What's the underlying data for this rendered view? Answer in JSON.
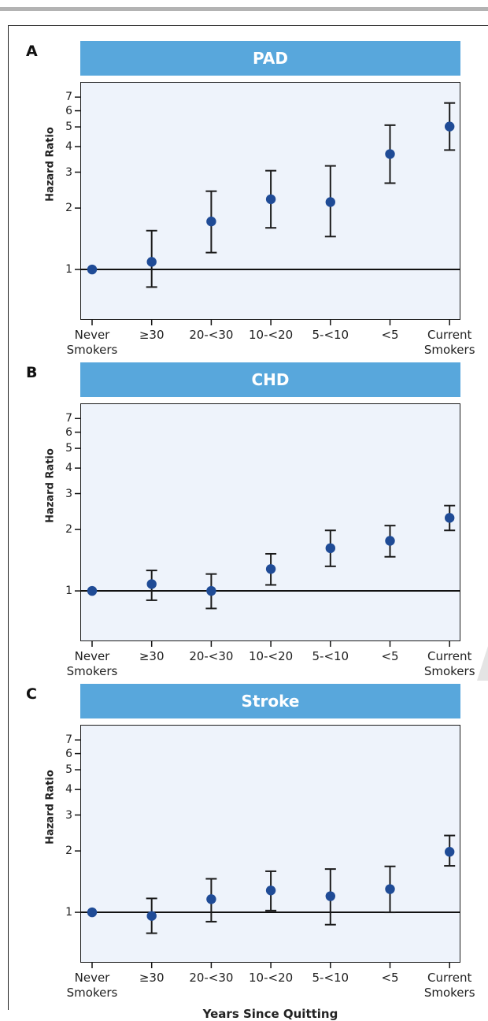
{
  "chart_data": [
    {
      "type": "scatter",
      "panel_label": "A",
      "title": "PAD",
      "xlabel": "Years Since Quitting",
      "ylabel": "Hazard Ratio",
      "y_scale": "log",
      "ylim": [
        0.78,
        7.6
      ],
      "y_ticks": [
        1,
        2,
        3,
        4,
        5,
        6,
        7
      ],
      "reference_line": 1,
      "categories": [
        "Never\nSmokers",
        "≥30",
        "20-<30",
        "10-<20",
        "5-<10",
        "<5",
        "Current\nSmokers"
      ],
      "values": [
        1.0,
        1.09,
        1.72,
        2.21,
        2.14,
        3.68,
        5.02
      ],
      "ci_low": [
        null,
        0.82,
        1.21,
        1.6,
        1.45,
        2.65,
        3.85
      ],
      "ci_high": [
        null,
        1.55,
        2.42,
        3.05,
        3.22,
        5.1,
        6.55
      ]
    },
    {
      "type": "scatter",
      "panel_label": "B",
      "title": "CHD",
      "xlabel": "Years Since Quitting",
      "ylabel": "Hazard Ratio",
      "y_scale": "log",
      "ylim": [
        0.78,
        7.6
      ],
      "y_ticks": [
        1,
        2,
        3,
        4,
        5,
        6,
        7
      ],
      "reference_line": 1,
      "categories": [
        "Never\nSmokers",
        "≥30",
        "20-<30",
        "10-<20",
        "5-<10",
        "<5",
        "Current\nSmokers"
      ],
      "values": [
        1.0,
        1.08,
        1.0,
        1.28,
        1.62,
        1.76,
        2.28
      ],
      "ci_low": [
        null,
        0.9,
        0.82,
        1.07,
        1.32,
        1.47,
        1.98
      ],
      "ci_high": [
        null,
        1.26,
        1.21,
        1.52,
        1.98,
        2.09,
        2.62
      ]
    },
    {
      "type": "scatter",
      "panel_label": "C",
      "title": "Stroke",
      "xlabel": "Years Since Quitting",
      "ylabel": "Hazard Ratio",
      "y_scale": "log",
      "ylim": [
        0.78,
        7.6
      ],
      "y_ticks": [
        1,
        2,
        3,
        4,
        5,
        6,
        7
      ],
      "reference_line": 1,
      "categories": [
        "Never\nSmokers",
        "≥30",
        "20-<30",
        "10-<20",
        "5-<10",
        "<5",
        "Current\nSmokers"
      ],
      "values": [
        1.0,
        0.96,
        1.16,
        1.28,
        1.2,
        1.3,
        1.98
      ],
      "ci_low": [
        null,
        0.79,
        0.9,
        1.02,
        0.87,
        1.0,
        1.69
      ],
      "ci_high": [
        null,
        1.17,
        1.46,
        1.59,
        1.63,
        1.68,
        2.38
      ]
    }
  ],
  "colors": {
    "banner": "#58a7dc",
    "plot_bg": "#eef3fb",
    "marker": "#1f4b96",
    "error_bar": "#1a1a1a"
  }
}
